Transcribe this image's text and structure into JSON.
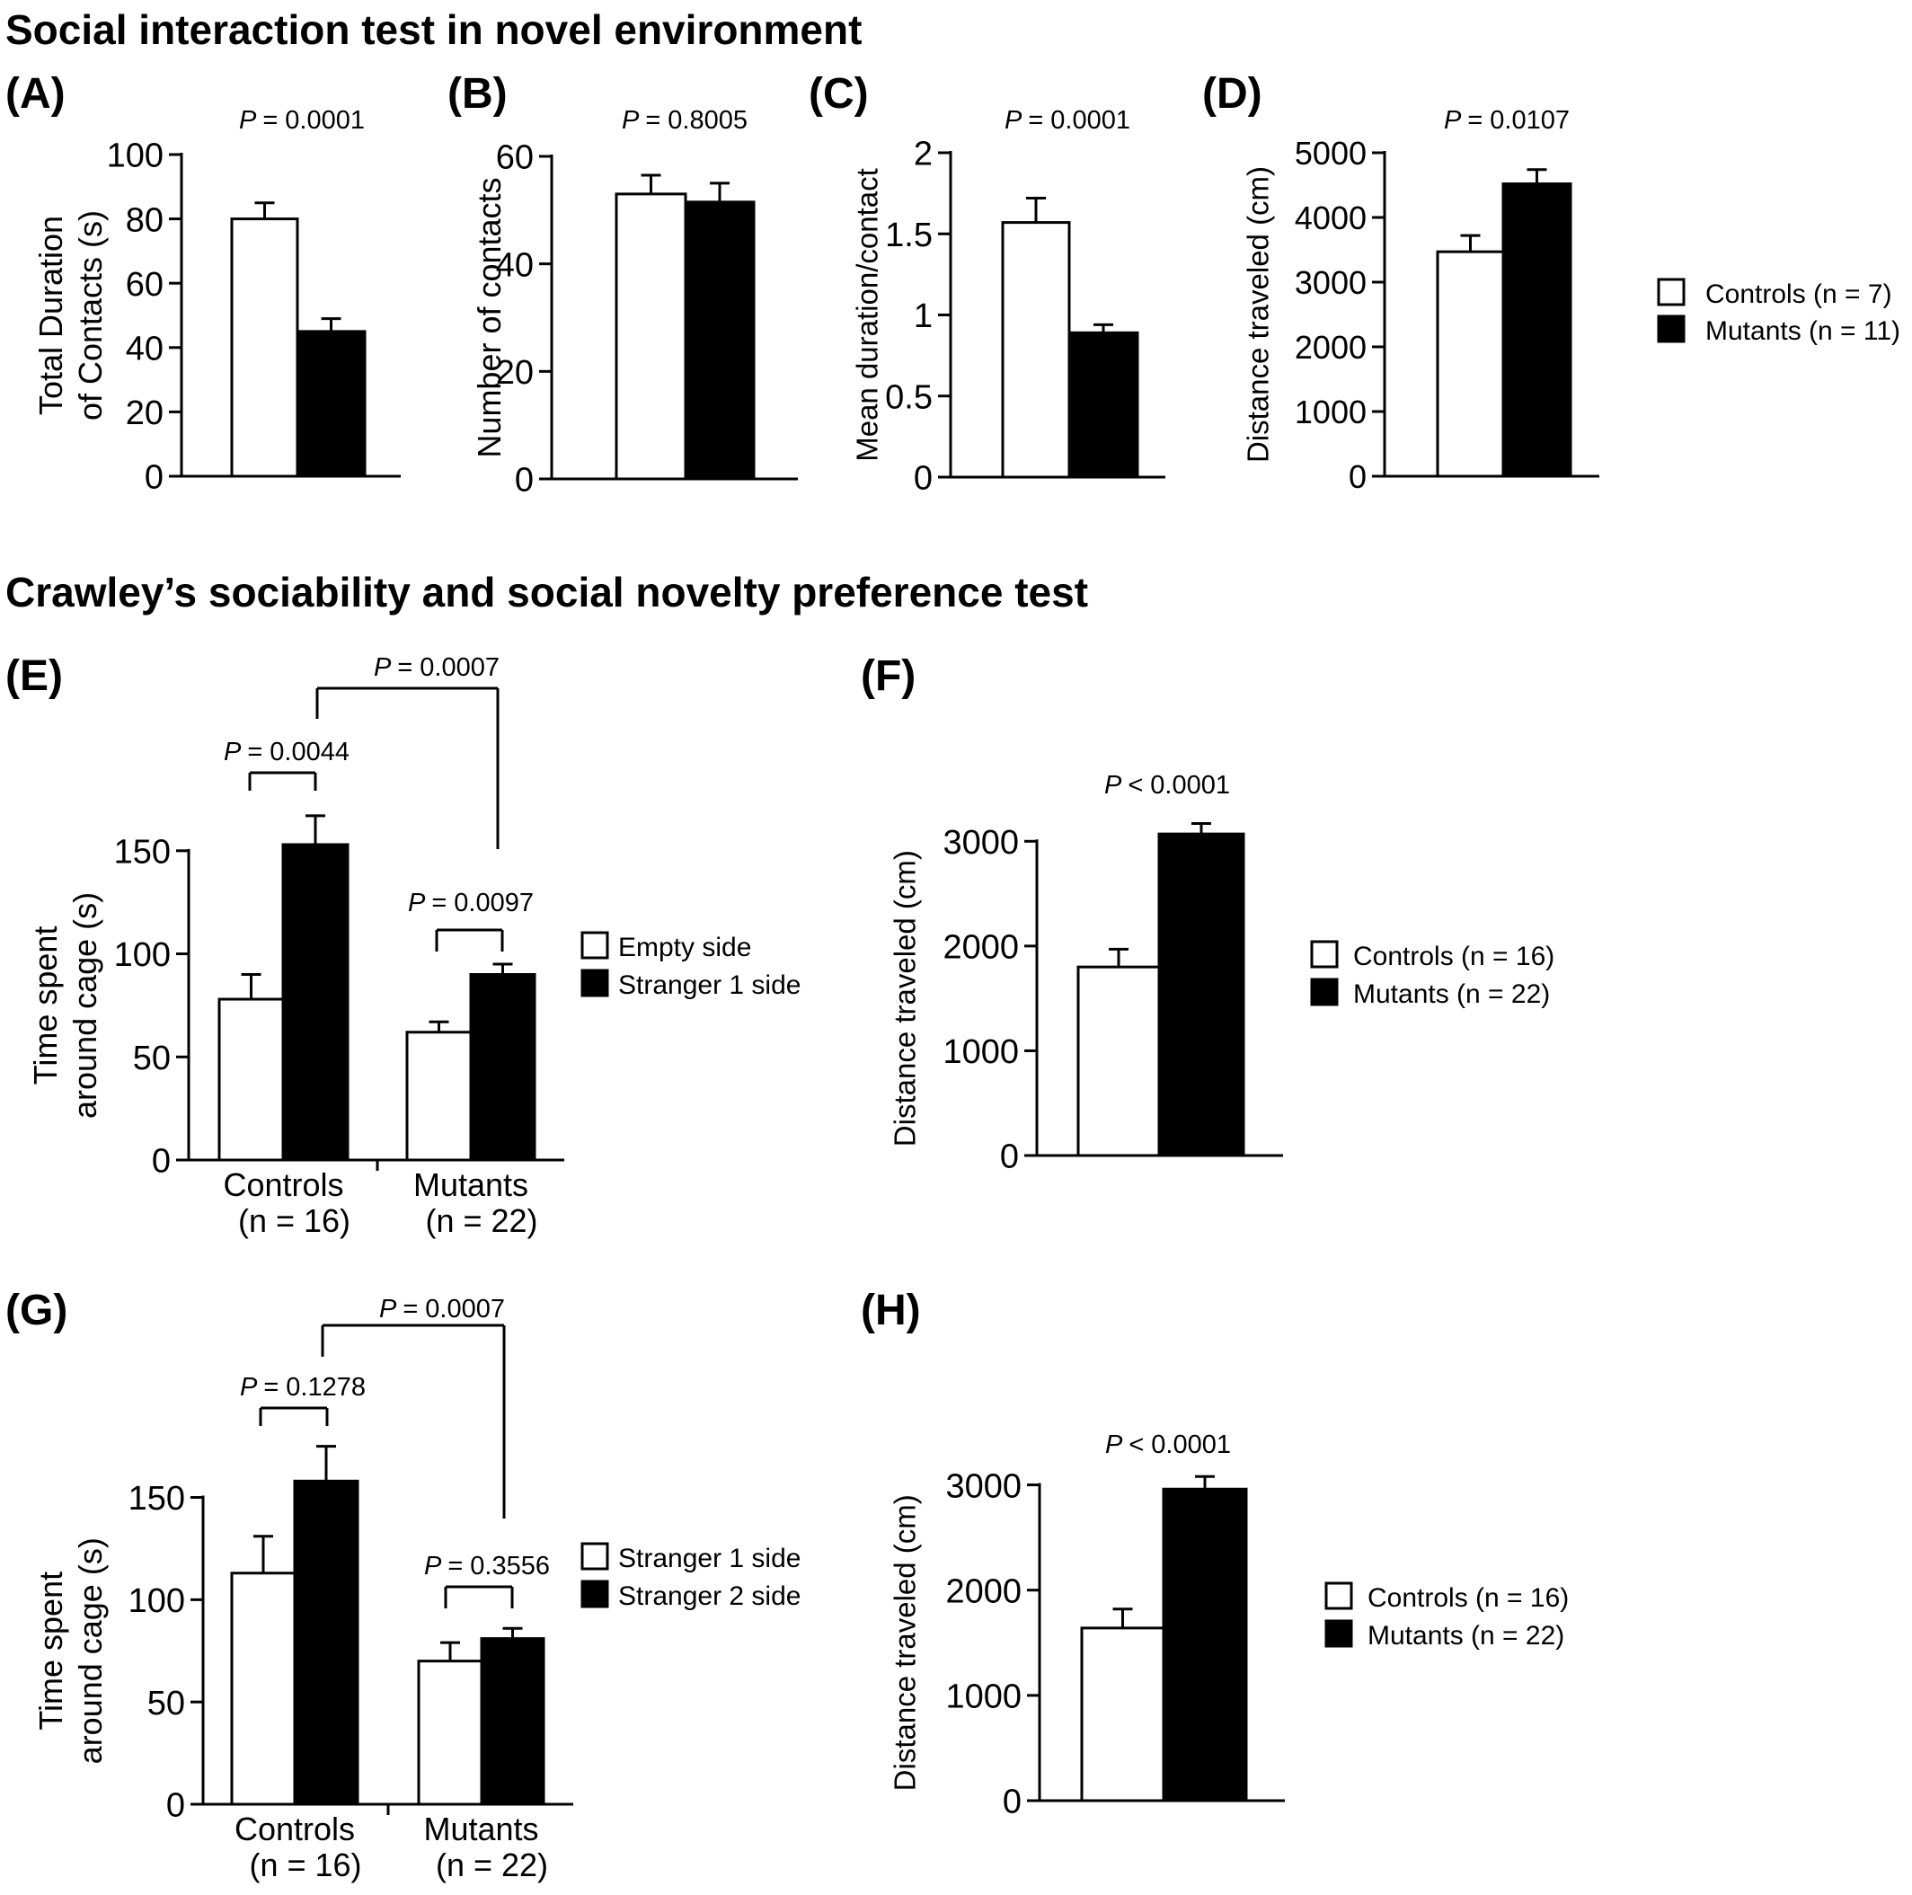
{
  "section_titles": {
    "top": "Social interaction test in novel environment",
    "bottom": "Crawley’s sociability and social novelty preference test"
  },
  "chart_data": [
    {
      "id": "A",
      "panel_label": "(A)",
      "type": "bar",
      "ylabel": [
        "Total Duration",
        "of Contacts (s)"
      ],
      "ylim": [
        0,
        100
      ],
      "yticks": [
        0,
        20,
        40,
        60,
        80,
        100
      ],
      "categories": [
        "Controls",
        "Mutants"
      ],
      "values": [
        80,
        45
      ],
      "errors": [
        5,
        4
      ],
      "pvalue": "= 0.0001"
    },
    {
      "id": "B",
      "panel_label": "(B)",
      "type": "bar",
      "ylabel": [
        "Number of contacts"
      ],
      "ylim": [
        0,
        60
      ],
      "yticks": [
        0,
        20,
        40,
        60
      ],
      "categories": [
        "Controls",
        "Mutants"
      ],
      "values": [
        53,
        51.5
      ],
      "errors": [
        3.5,
        3.5
      ],
      "pvalue": "= 0.8005"
    },
    {
      "id": "C",
      "panel_label": "(C)",
      "type": "bar",
      "ylabel": [
        "Mean duration/contact"
      ],
      "ylim": [
        0,
        2
      ],
      "yticks": [
        0,
        0.5,
        1,
        1.5,
        2
      ],
      "categories": [
        "Controls",
        "Mutants"
      ],
      "values": [
        1.57,
        0.89
      ],
      "errors": [
        0.15,
        0.05
      ],
      "pvalue": "= 0.0001"
    },
    {
      "id": "D",
      "panel_label": "(D)",
      "type": "bar",
      "ylabel": [
        "Distance traveled (cm)"
      ],
      "ylim": [
        0,
        5000
      ],
      "yticks": [
        0,
        1000,
        2000,
        3000,
        4000,
        5000
      ],
      "categories": [
        "Controls",
        "Mutants"
      ],
      "values": [
        3470,
        4520
      ],
      "errors": [
        250,
        220
      ],
      "pvalue": "= 0.0107",
      "legend": [
        "Controls (n = 7)",
        "Mutants (n = 11)"
      ]
    },
    {
      "id": "E",
      "panel_label": "(E)",
      "type": "bar",
      "ylabel": [
        "Time spent",
        "around cage (s)"
      ],
      "ylim": [
        0,
        180
      ],
      "yticks": [
        0,
        50,
        100,
        150
      ],
      "groups": [
        [
          "Controls",
          "(n = 16)"
        ],
        [
          "Mutants",
          "(n = 22)"
        ]
      ],
      "series": [
        {
          "name": "Empty side",
          "values": [
            78,
            62
          ],
          "errors": [
            12,
            5
          ]
        },
        {
          "name": "Stranger 1 side",
          "values": [
            153,
            90
          ],
          "errors": [
            14,
            5
          ]
        }
      ],
      "comparisons": [
        "= 0.0044",
        "= 0.0097",
        "= 0.0007"
      ]
    },
    {
      "id": "F",
      "panel_label": "(F)",
      "type": "bar",
      "ylabel": [
        "Distance traveled (cm)"
      ],
      "ylim": [
        0,
        3500
      ],
      "yticks": [
        0,
        1000,
        2000,
        3000
      ],
      "categories": [
        "Controls",
        "Mutants"
      ],
      "values": [
        1800,
        3070
      ],
      "errors": [
        170,
        100
      ],
      "pvalue": "< 0.0001",
      "legend": [
        "Controls (n = 16)",
        "Mutants (n = 22)"
      ]
    },
    {
      "id": "G",
      "panel_label": "(G)",
      "type": "bar",
      "ylabel": [
        "Time spent",
        "around cage (s)"
      ],
      "ylim": [
        0,
        170
      ],
      "yticks": [
        0,
        50,
        100,
        150
      ],
      "groups": [
        [
          "Controls",
          "(n = 16)"
        ],
        [
          "Mutants",
          "(n = 22)"
        ]
      ],
      "series": [
        {
          "name": "Stranger 1 side",
          "values": [
            113,
            70
          ],
          "errors": [
            18,
            9
          ]
        },
        {
          "name": "Stranger 2 side",
          "values": [
            158,
            81
          ],
          "errors": [
            17,
            5
          ]
        }
      ],
      "comparisons": [
        "= 0.1278",
        "= 0.3556",
        "= 0.0007"
      ]
    },
    {
      "id": "H",
      "panel_label": "(H)",
      "type": "bar",
      "ylabel": [
        "Distance traveled (cm)"
      ],
      "ylim": [
        0,
        3500
      ],
      "yticks": [
        0,
        1000,
        2000,
        3000
      ],
      "categories": [
        "Controls",
        "Mutants"
      ],
      "values": [
        1640,
        2960
      ],
      "errors": [
        180,
        120
      ],
      "pvalue": "< 0.0001",
      "legend": [
        "Controls (n = 16)",
        "Mutants (n = 22)"
      ]
    }
  ]
}
